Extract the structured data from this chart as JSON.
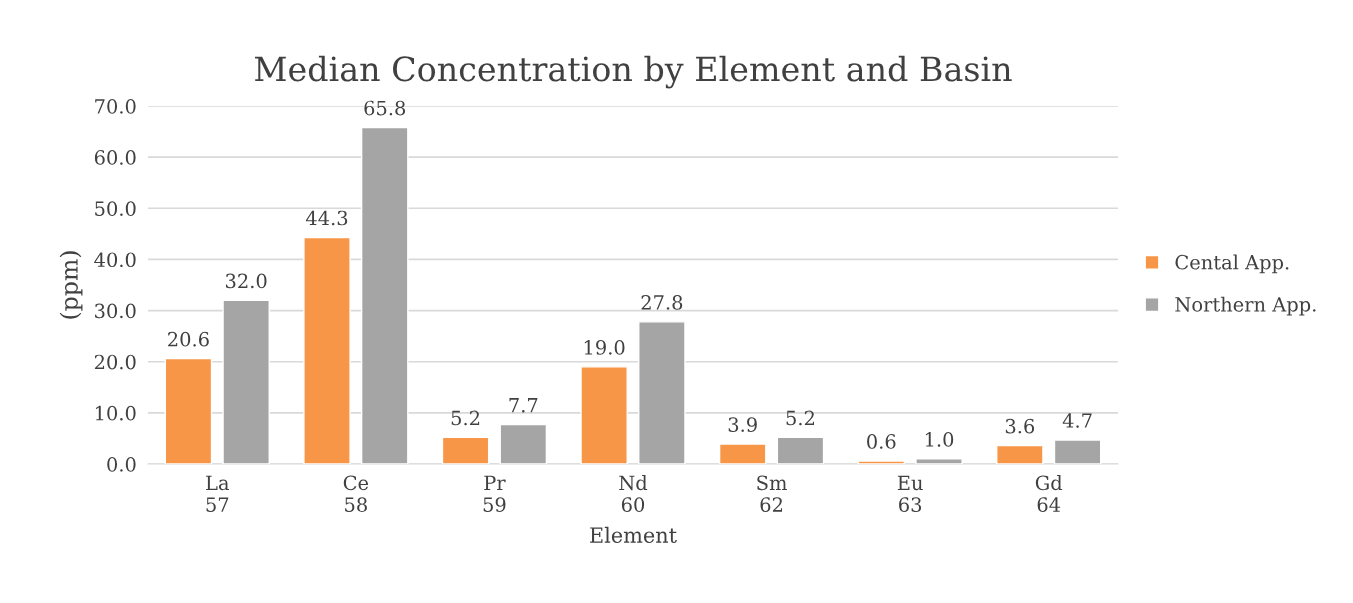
{
  "chart_data": {
    "type": "bar",
    "title": "Median Concentration by Element and Basin",
    "xlabel": "Element",
    "ylabel": "(ppm)",
    "categories": [
      "La\n57",
      "Ce\n58",
      "Pr\n59",
      "Nd\n60",
      "Sm\n62",
      "Eu\n63",
      "Gd\n64"
    ],
    "series": [
      {
        "name": "Cental App.",
        "color": "#f79646",
        "values": [
          20.6,
          44.3,
          5.2,
          19.0,
          3.9,
          0.6,
          3.6
        ],
        "value_labels": [
          "20.6",
          "44.3",
          "5.2",
          "19.0",
          "3.9",
          "0.6",
          "3.6"
        ]
      },
      {
        "name": "Northern App.",
        "color": "#a5a5a5",
        "values": [
          32.0,
          65.8,
          7.7,
          27.8,
          5.2,
          1.0,
          4.7
        ],
        "value_labels": [
          "32.0",
          "65.8",
          "7.7",
          "27.8",
          "5.2",
          "1.0",
          "4.7"
        ]
      }
    ],
    "ylim": [
      0,
      70
    ],
    "yticks": [
      {
        "value": 0,
        "label": "0.0"
      },
      {
        "value": 10,
        "label": "10.0"
      },
      {
        "value": 20,
        "label": "20.0"
      },
      {
        "value": 30,
        "label": "30.0"
      },
      {
        "value": 40,
        "label": "40.0"
      },
      {
        "value": 50,
        "label": "50.0"
      },
      {
        "value": 60,
        "label": "60.0"
      },
      {
        "value": 70,
        "label": "70.0"
      }
    ],
    "grid": "y",
    "legend": "right"
  }
}
